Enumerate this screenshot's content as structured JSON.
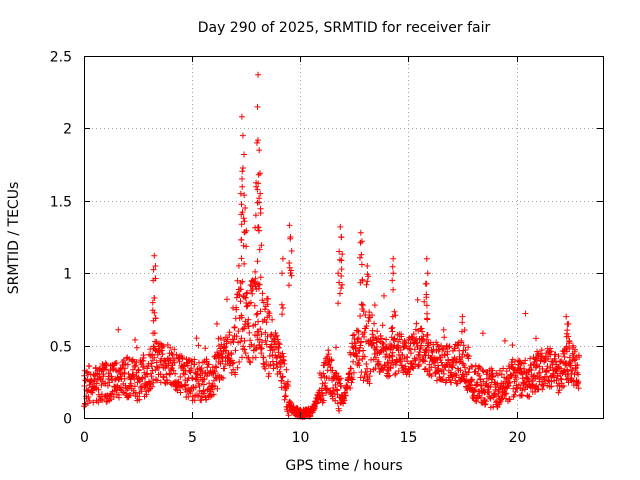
{
  "chart_data": {
    "type": "scatter",
    "title": "Day 290 of 2025, SRMTID for receiver fair",
    "xlabel": "GPS time / hours",
    "ylabel": "SRMTID / TECUs",
    "xlim": [
      0,
      24
    ],
    "ylim": [
      0,
      2.5
    ],
    "x_ticks": [
      0,
      5,
      10,
      15,
      20
    ],
    "x_tick_labels": [
      "0",
      "5",
      "10",
      "15",
      "20"
    ],
    "y_ticks": [
      0,
      0.5,
      1,
      1.5,
      2,
      2.5
    ],
    "y_tick_labels": [
      "0",
      "0.5",
      "1",
      "1.5",
      "2",
      "2.5"
    ],
    "grid": true,
    "marker": "+",
    "color": "#ff0000",
    "trend": [
      [
        0.0,
        0.22
      ],
      [
        0.5,
        0.25
      ],
      [
        1.0,
        0.24
      ],
      [
        1.5,
        0.26
      ],
      [
        2.0,
        0.28
      ],
      [
        2.5,
        0.25
      ],
      [
        3.0,
        0.3
      ],
      [
        3.3,
        0.4
      ],
      [
        3.6,
        0.38
      ],
      [
        4.0,
        0.36
      ],
      [
        4.5,
        0.3
      ],
      [
        5.0,
        0.26
      ],
      [
        5.5,
        0.25
      ],
      [
        6.0,
        0.3
      ],
      [
        6.5,
        0.42
      ],
      [
        7.0,
        0.55
      ],
      [
        7.3,
        0.7
      ],
      [
        7.6,
        0.65
      ],
      [
        8.0,
        0.7
      ],
      [
        8.3,
        0.6
      ],
      [
        8.7,
        0.5
      ],
      [
        9.0,
        0.4
      ],
      [
        9.3,
        0.25
      ],
      [
        9.6,
        0.06
      ],
      [
        10.0,
        0.03
      ],
      [
        10.5,
        0.04
      ],
      [
        11.0,
        0.2
      ],
      [
        11.3,
        0.35
      ],
      [
        11.6,
        0.18
      ],
      [
        12.0,
        0.12
      ],
      [
        12.5,
        0.45
      ],
      [
        13.0,
        0.55
      ],
      [
        13.5,
        0.45
      ],
      [
        14.0,
        0.4
      ],
      [
        14.5,
        0.45
      ],
      [
        15.0,
        0.42
      ],
      [
        15.5,
        0.5
      ],
      [
        16.0,
        0.42
      ],
      [
        16.5,
        0.38
      ],
      [
        17.0,
        0.35
      ],
      [
        17.5,
        0.4
      ],
      [
        18.0,
        0.25
      ],
      [
        18.5,
        0.22
      ],
      [
        19.0,
        0.2
      ],
      [
        19.5,
        0.22
      ],
      [
        20.0,
        0.28
      ],
      [
        20.5,
        0.26
      ],
      [
        21.0,
        0.32
      ],
      [
        21.5,
        0.35
      ],
      [
        22.0,
        0.3
      ],
      [
        22.5,
        0.4
      ],
      [
        22.9,
        0.3
      ]
    ],
    "peaks": [
      [
        3.25,
        1.12
      ],
      [
        3.3,
        1.05
      ],
      [
        3.2,
        0.95
      ],
      [
        7.3,
        2.08
      ],
      [
        7.35,
        1.95
      ],
      [
        7.4,
        1.82
      ],
      [
        7.25,
        1.55
      ],
      [
        7.45,
        1.45
      ],
      [
        8.05,
        2.37
      ],
      [
        8.0,
        1.9
      ],
      [
        8.1,
        1.85
      ],
      [
        8.05,
        1.62
      ],
      [
        8.15,
        1.55
      ],
      [
        7.95,
        1.4
      ],
      [
        9.5,
        1.33
      ],
      [
        9.55,
        1.25
      ],
      [
        9.2,
        1.1
      ],
      [
        11.85,
        1.32
      ],
      [
        11.9,
        1.25
      ],
      [
        11.8,
        1.15
      ],
      [
        12.8,
        1.28
      ],
      [
        12.85,
        1.22
      ],
      [
        13.1,
        1.05
      ],
      [
        14.3,
        1.1
      ],
      [
        14.25,
        0.95
      ],
      [
        15.85,
        1.1
      ],
      [
        15.9,
        1.0
      ],
      [
        17.5,
        0.7
      ],
      [
        22.3,
        0.7
      ],
      [
        22.4,
        0.65
      ],
      [
        20.9,
        0.55
      ]
    ]
  }
}
